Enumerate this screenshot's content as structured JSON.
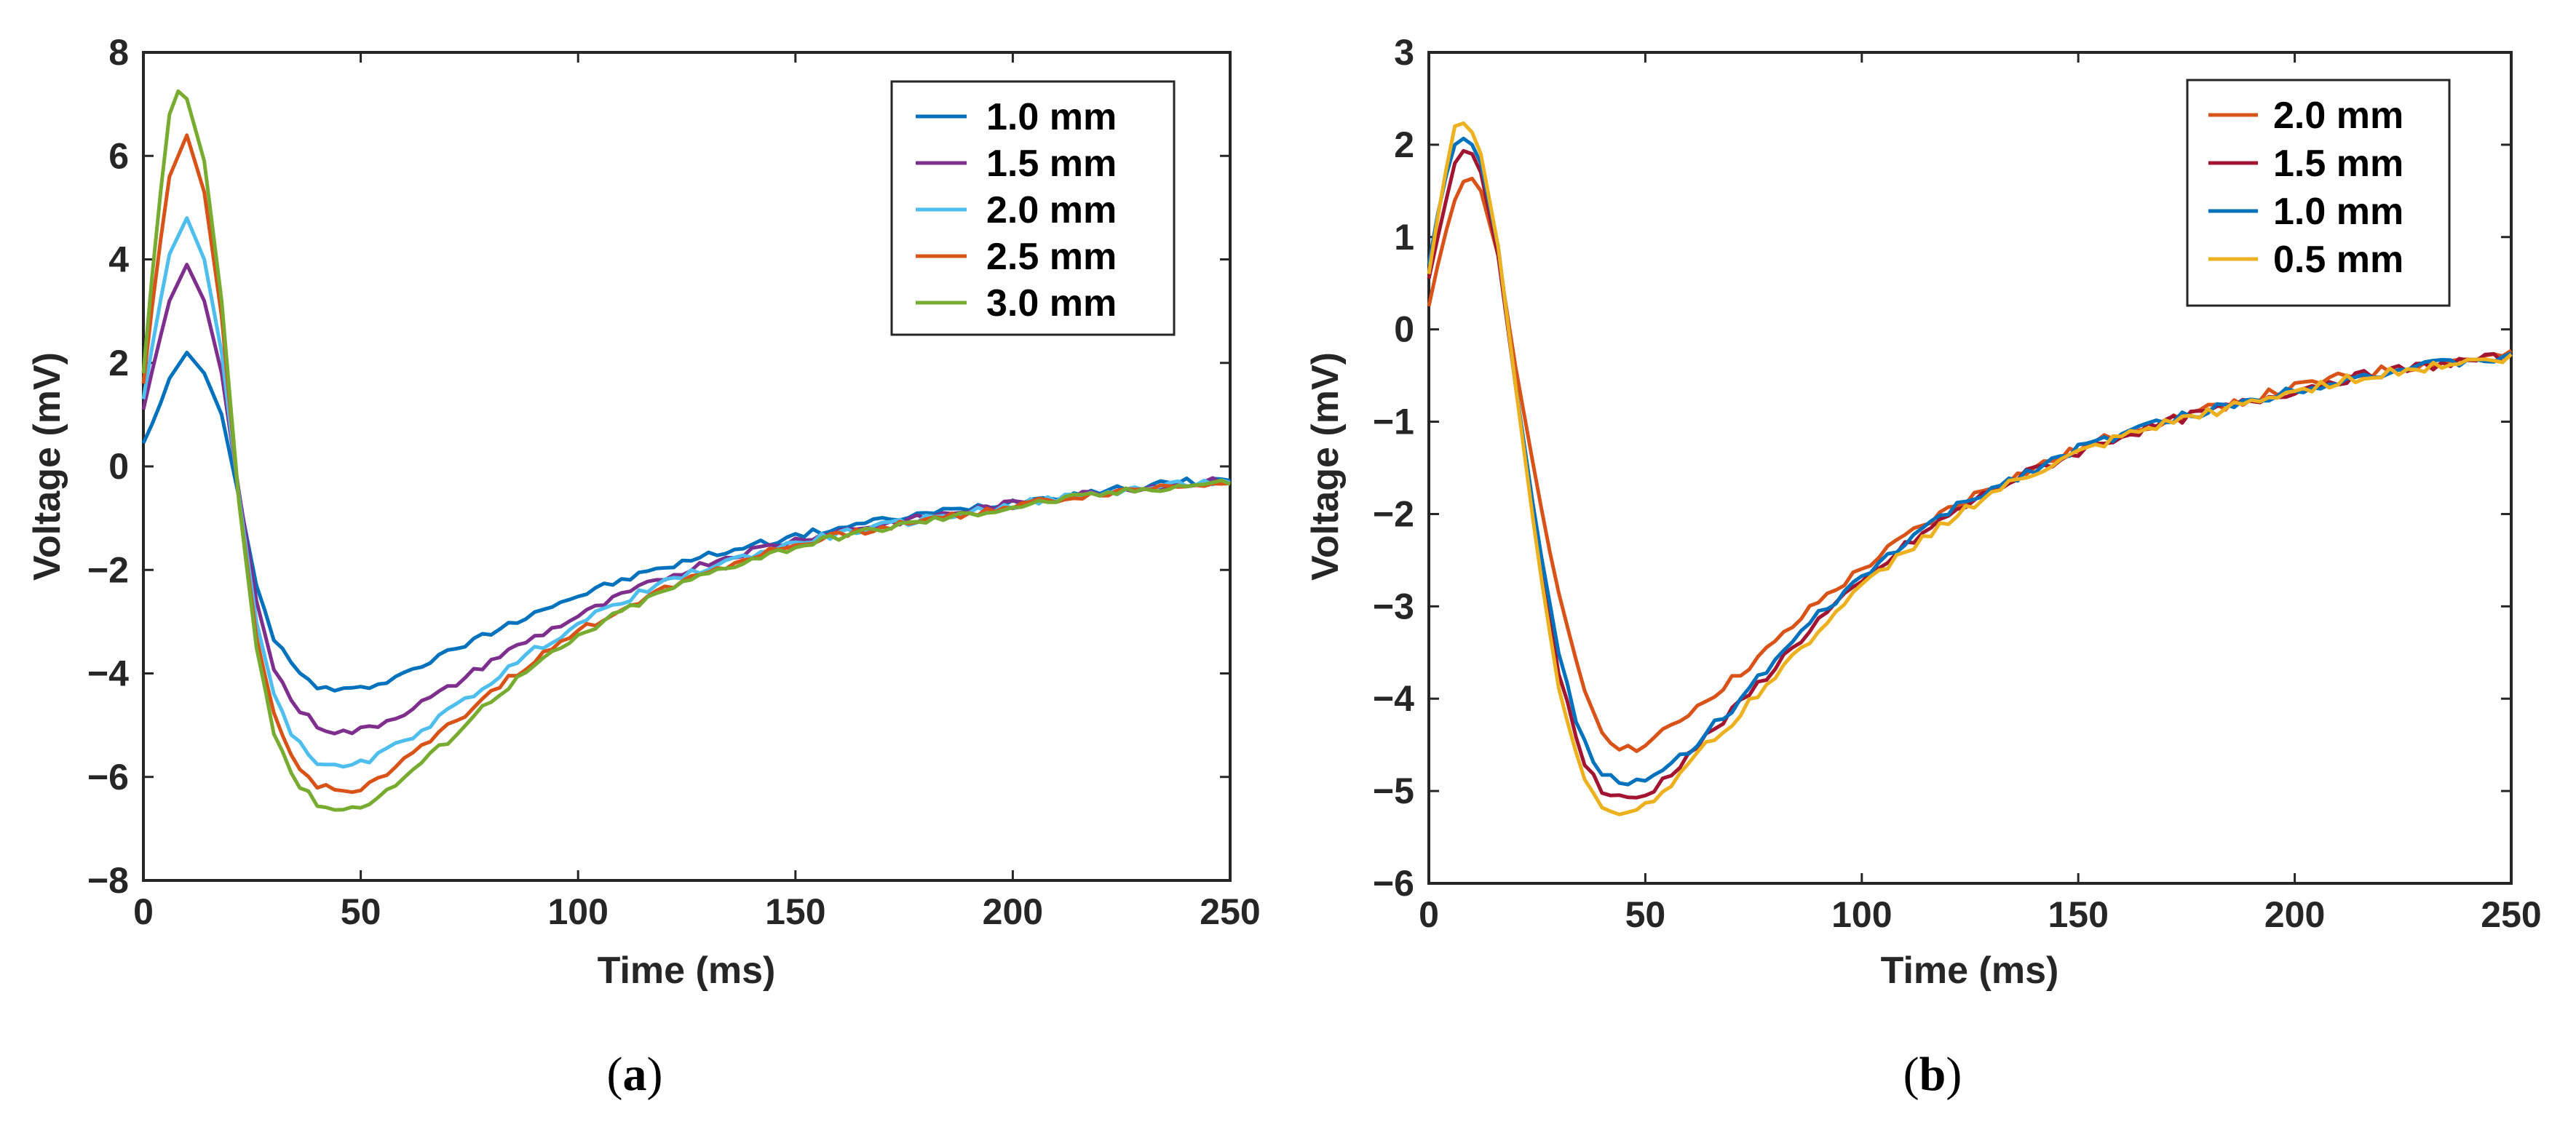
{
  "chart_data": [
    {
      "type": "line",
      "panel_label": "a",
      "xlabel": "Time (ms)",
      "ylabel": "Voltage (mV)",
      "xlim": [
        0,
        250
      ],
      "ylim": [
        -8,
        8
      ],
      "xticks": [
        0,
        50,
        100,
        150,
        200,
        250
      ],
      "yticks": [
        -8,
        -6,
        -4,
        -2,
        0,
        2,
        4,
        6,
        8
      ],
      "legend_position": "top-right",
      "series": [
        {
          "name": "1.0 mm",
          "color": "#0072BD",
          "x": [
            0,
            3,
            6,
            10,
            14,
            18,
            22,
            26,
            30,
            35,
            40,
            45,
            50,
            55,
            60,
            70,
            80,
            90,
            100,
            110,
            120,
            130,
            140,
            150,
            160,
            175,
            190,
            200,
            210,
            220,
            230,
            240,
            250
          ],
          "y": [
            0.45,
            1.0,
            1.7,
            2.2,
            1.8,
            1.0,
            -0.6,
            -2.3,
            -3.3,
            -3.95,
            -4.25,
            -4.35,
            -4.3,
            -4.15,
            -4.0,
            -3.6,
            -3.2,
            -2.8,
            -2.5,
            -2.2,
            -1.95,
            -1.72,
            -1.52,
            -1.35,
            -1.18,
            -0.98,
            -0.8,
            -0.68,
            -0.57,
            -0.47,
            -0.38,
            -0.3,
            -0.25
          ]
        },
        {
          "name": "1.5 mm",
          "color": "#7E2F8E",
          "x": [
            0,
            3,
            6,
            10,
            14,
            18,
            22,
            26,
            30,
            35,
            40,
            45,
            50,
            55,
            60,
            70,
            80,
            90,
            100,
            110,
            120,
            130,
            140,
            150,
            160,
            175,
            190,
            200,
            210,
            220,
            230,
            240,
            250
          ],
          "y": [
            1.1,
            2.2,
            3.2,
            3.9,
            3.2,
            1.8,
            -0.5,
            -2.6,
            -3.9,
            -4.65,
            -5.0,
            -5.15,
            -5.1,
            -4.95,
            -4.75,
            -4.3,
            -3.75,
            -3.3,
            -2.9,
            -2.5,
            -2.15,
            -1.85,
            -1.62,
            -1.42,
            -1.25,
            -1.05,
            -0.85,
            -0.72,
            -0.6,
            -0.5,
            -0.4,
            -0.32,
            -0.27
          ]
        },
        {
          "name": "2.0 mm",
          "color": "#4DBEEE",
          "x": [
            0,
            3,
            6,
            10,
            14,
            18,
            22,
            26,
            30,
            35,
            40,
            45,
            50,
            55,
            60,
            70,
            80,
            90,
            100,
            110,
            120,
            130,
            140,
            150,
            160,
            175,
            190,
            200,
            210,
            220,
            230,
            240,
            250
          ],
          "y": [
            1.3,
            2.8,
            4.1,
            4.8,
            4.0,
            2.2,
            -0.6,
            -3.0,
            -4.4,
            -5.3,
            -5.7,
            -5.85,
            -5.75,
            -5.55,
            -5.3,
            -4.75,
            -4.15,
            -3.55,
            -3.05,
            -2.6,
            -2.25,
            -1.95,
            -1.7,
            -1.48,
            -1.3,
            -1.08,
            -0.88,
            -0.75,
            -0.62,
            -0.52,
            -0.42,
            -0.34,
            -0.28
          ]
        },
        {
          "name": "2.5 mm",
          "color": "#D95319",
          "x": [
            0,
            3,
            6,
            10,
            14,
            18,
            22,
            26,
            30,
            35,
            40,
            45,
            50,
            55,
            60,
            70,
            80,
            90,
            100,
            110,
            120,
            130,
            140,
            150,
            160,
            175,
            190,
            200,
            210,
            220,
            230,
            240,
            250
          ],
          "y": [
            1.6,
            3.8,
            5.6,
            6.4,
            5.3,
            2.9,
            -0.7,
            -3.3,
            -4.8,
            -5.8,
            -6.15,
            -6.3,
            -6.2,
            -6.0,
            -5.7,
            -5.05,
            -4.35,
            -3.75,
            -3.2,
            -2.75,
            -2.35,
            -2.02,
            -1.75,
            -1.52,
            -1.33,
            -1.1,
            -0.9,
            -0.77,
            -0.64,
            -0.53,
            -0.43,
            -0.35,
            -0.29
          ]
        },
        {
          "name": "3.0 mm",
          "color": "#77AC30",
          "x": [
            0,
            3,
            6,
            8,
            10,
            14,
            18,
            22,
            26,
            30,
            35,
            40,
            45,
            50,
            55,
            60,
            70,
            80,
            90,
            100,
            110,
            120,
            130,
            140,
            150,
            160,
            175,
            190,
            200,
            210,
            220,
            230,
            240,
            250
          ],
          "y": [
            1.8,
            4.6,
            6.8,
            7.25,
            7.1,
            5.9,
            3.2,
            -0.7,
            -3.5,
            -5.1,
            -6.1,
            -6.5,
            -6.65,
            -6.55,
            -6.35,
            -6.0,
            -5.3,
            -4.5,
            -3.85,
            -3.3,
            -2.8,
            -2.4,
            -2.06,
            -1.78,
            -1.55,
            -1.35,
            -1.12,
            -0.92,
            -0.78,
            -0.65,
            -0.54,
            -0.44,
            -0.36,
            -0.3
          ]
        }
      ]
    },
    {
      "type": "line",
      "panel_label": "b",
      "xlabel": "Time (ms)",
      "ylabel": "Voltage (mV)",
      "xlim": [
        0,
        250
      ],
      "ylim": [
        -6,
        3
      ],
      "xticks": [
        0,
        50,
        100,
        150,
        200,
        250
      ],
      "yticks": [
        -6,
        -5,
        -4,
        -3,
        -2,
        -1,
        0,
        1,
        2,
        3
      ],
      "legend_position": "top-right",
      "series": [
        {
          "name": "2.0 mm",
          "color": "#D95319",
          "x": [
            0,
            3,
            6,
            9,
            12,
            16,
            20,
            25,
            30,
            35,
            40,
            45,
            50,
            55,
            60,
            70,
            80,
            90,
            100,
            110,
            120,
            130,
            140,
            150,
            160,
            175,
            190,
            200,
            210,
            220,
            230,
            240,
            250
          ],
          "y": [
            0.25,
            0.9,
            1.4,
            1.7,
            1.5,
            0.8,
            -0.4,
            -1.7,
            -2.9,
            -3.8,
            -4.35,
            -4.55,
            -4.5,
            -4.35,
            -4.15,
            -3.8,
            -3.4,
            -2.95,
            -2.6,
            -2.25,
            -1.95,
            -1.7,
            -1.5,
            -1.3,
            -1.12,
            -0.92,
            -0.75,
            -0.63,
            -0.53,
            -0.45,
            -0.38,
            -0.32,
            -0.28
          ]
        },
        {
          "name": "1.5 mm",
          "color": "#A2142F",
          "x": [
            0,
            3,
            6,
            9,
            12,
            16,
            20,
            25,
            30,
            35,
            40,
            45,
            50,
            55,
            60,
            70,
            80,
            90,
            100,
            110,
            120,
            130,
            140,
            150,
            160,
            175,
            190,
            200,
            210,
            220,
            230,
            240,
            250
          ],
          "y": [
            0.55,
            1.2,
            1.8,
            2.0,
            1.7,
            0.8,
            -0.6,
            -2.3,
            -3.7,
            -4.6,
            -5.0,
            -5.1,
            -5.05,
            -4.85,
            -4.6,
            -4.15,
            -3.65,
            -3.15,
            -2.75,
            -2.35,
            -2.02,
            -1.75,
            -1.52,
            -1.33,
            -1.15,
            -0.95,
            -0.78,
            -0.66,
            -0.55,
            -0.47,
            -0.4,
            -0.34,
            -0.3
          ]
        },
        {
          "name": "1.0 mm",
          "color": "#0072BD",
          "x": [
            0,
            3,
            6,
            9,
            12,
            16,
            20,
            25,
            30,
            35,
            40,
            45,
            50,
            55,
            60,
            70,
            80,
            90,
            100,
            110,
            120,
            130,
            140,
            150,
            160,
            175,
            190,
            200,
            210,
            220,
            230,
            240,
            250
          ],
          "y": [
            0.7,
            1.5,
            2.0,
            2.1,
            1.8,
            0.9,
            -0.6,
            -2.2,
            -3.5,
            -4.4,
            -4.8,
            -4.95,
            -4.9,
            -4.75,
            -4.55,
            -4.1,
            -3.6,
            -3.1,
            -2.7,
            -2.3,
            -1.98,
            -1.72,
            -1.5,
            -1.3,
            -1.13,
            -0.93,
            -0.77,
            -0.65,
            -0.55,
            -0.47,
            -0.4,
            -0.34,
            -0.3
          ]
        },
        {
          "name": "0.5 mm",
          "color": "#EDB120",
          "x": [
            0,
            3,
            6,
            9,
            12,
            16,
            20,
            25,
            30,
            35,
            40,
            45,
            50,
            55,
            60,
            70,
            80,
            90,
            100,
            110,
            120,
            130,
            140,
            150,
            160,
            175,
            190,
            200,
            210,
            220,
            230,
            240,
            250
          ],
          "y": [
            0.6,
            1.5,
            2.2,
            2.25,
            1.9,
            0.9,
            -0.6,
            -2.4,
            -3.9,
            -4.8,
            -5.15,
            -5.25,
            -5.15,
            -4.95,
            -4.7,
            -4.25,
            -3.75,
            -3.25,
            -2.8,
            -2.4,
            -2.06,
            -1.78,
            -1.55,
            -1.35,
            -1.17,
            -0.96,
            -0.79,
            -0.67,
            -0.56,
            -0.48,
            -0.41,
            -0.35,
            -0.31
          ]
        }
      ]
    }
  ]
}
